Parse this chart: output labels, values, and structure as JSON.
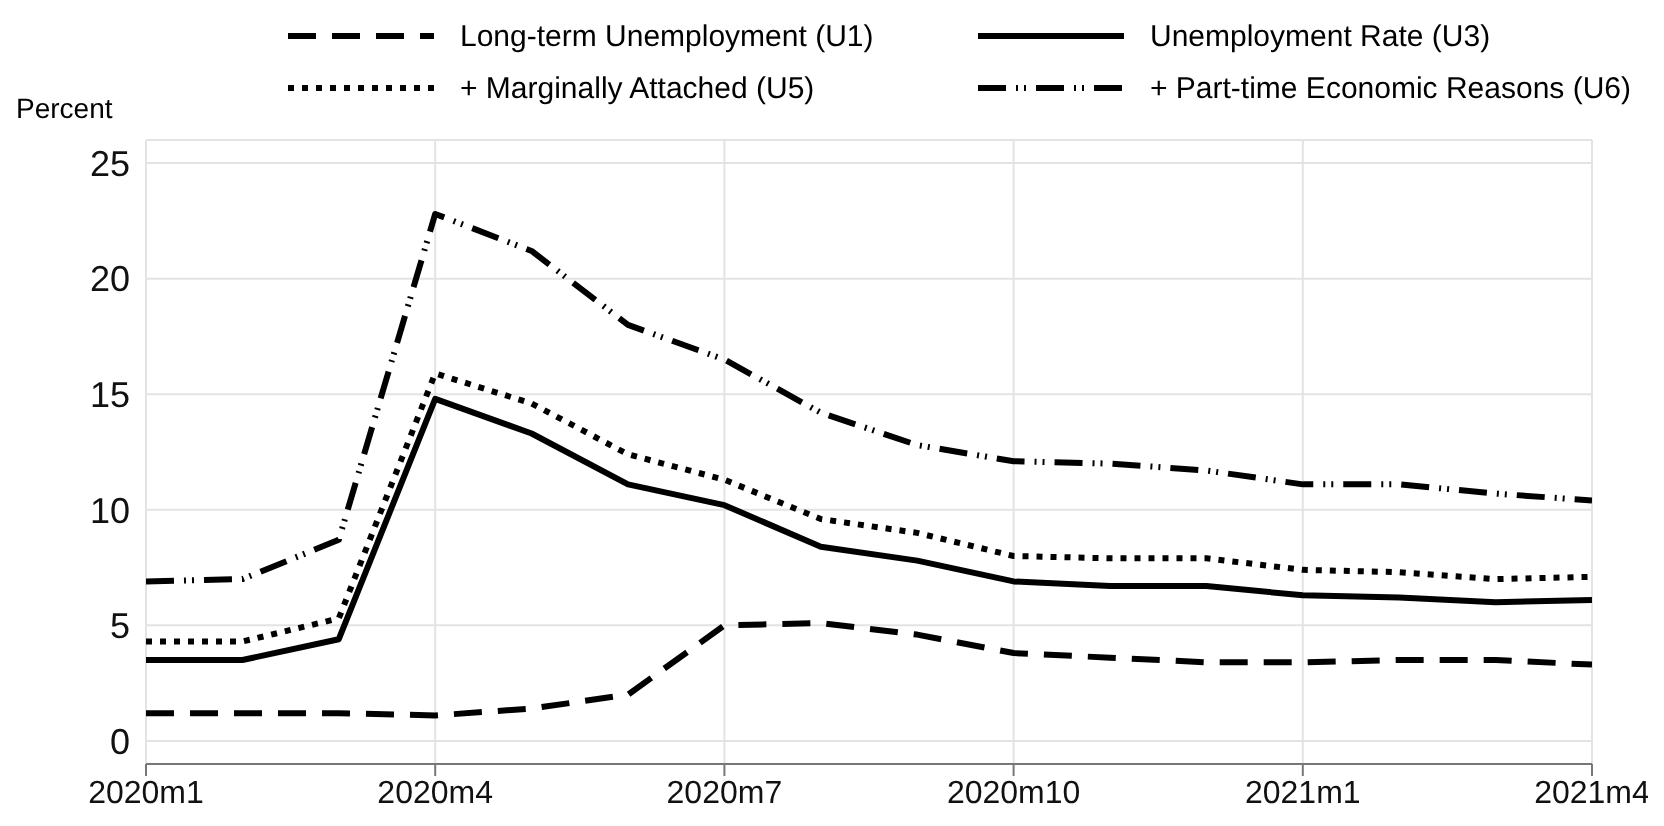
{
  "chart_data": {
    "type": "line",
    "ylabel": "Percent",
    "categories": [
      "2020m1",
      null,
      null,
      "2020m4",
      null,
      null,
      "2020m7",
      null,
      null,
      "2020m10",
      null,
      null,
      "2021m1",
      null,
      null,
      "2021m4"
    ],
    "series": [
      {
        "name": "Long-term Unemployment (U1)",
        "color": "#000000",
        "line_style": "dashed",
        "values": [
          1.2,
          1.2,
          1.2,
          1.1,
          1.4,
          2.0,
          5.0,
          5.1,
          4.6,
          3.8,
          3.6,
          3.4,
          3.4,
          3.5,
          3.5,
          3.3
        ]
      },
      {
        "name": "Unemployment Rate (U3)",
        "color": "#000000",
        "line_style": "solid",
        "values": [
          3.5,
          3.5,
          4.4,
          14.8,
          13.3,
          11.1,
          10.2,
          8.4,
          7.8,
          6.9,
          6.7,
          6.7,
          6.3,
          6.2,
          6.0,
          6.1
        ]
      },
      {
        "name": "+ Marginally Attached (U5)",
        "color": "#000000",
        "line_style": "dotted",
        "values": [
          4.3,
          4.3,
          5.3,
          15.9,
          14.6,
          12.4,
          11.3,
          9.6,
          9.0,
          8.0,
          7.9,
          7.9,
          7.4,
          7.3,
          7.0,
          7.1
        ]
      },
      {
        "name": "+ Part-time Economic Reasons (U6)",
        "color": "#000000",
        "line_style": "dashdot",
        "values": [
          6.9,
          7.0,
          8.7,
          22.8,
          21.2,
          18.0,
          16.5,
          14.2,
          12.8,
          12.1,
          12.0,
          11.7,
          11.1,
          11.1,
          10.7,
          10.4
        ]
      }
    ],
    "ylim": [
      -1,
      26
    ],
    "yticks": [
      0,
      5,
      10,
      15,
      20,
      25
    ],
    "grid": true,
    "legend": "top",
    "marker": "none"
  }
}
